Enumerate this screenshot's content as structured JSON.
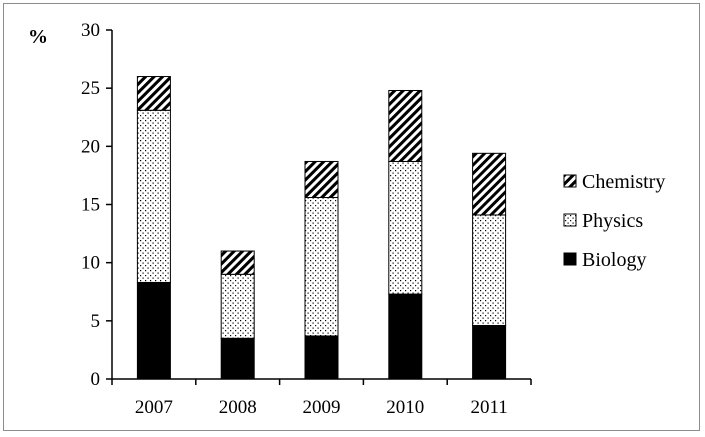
{
  "chart_data": {
    "type": "bar",
    "stacked": true,
    "title": "",
    "xlabel": "",
    "ylabel": "%",
    "ylim": [
      0,
      30
    ],
    "yticks": [
      0,
      5,
      10,
      15,
      20,
      25,
      30
    ],
    "grid": false,
    "legend_position": "right",
    "categories": [
      "2007",
      "2008",
      "2009",
      "2010",
      "2011"
    ],
    "series": [
      {
        "name": "Biology",
        "pattern": "solid",
        "color": "#000000",
        "values": [
          8.3,
          3.5,
          3.7,
          7.3,
          4.6
        ]
      },
      {
        "name": "Physics",
        "pattern": "dotted",
        "color": "#ffffff",
        "values": [
          14.8,
          5.5,
          11.9,
          11.4,
          9.5
        ]
      },
      {
        "name": "Chemistry",
        "pattern": "hatched",
        "color": "#000000",
        "values": [
          2.9,
          2.0,
          3.1,
          6.1,
          5.3
        ]
      }
    ],
    "legend_order": [
      "Chemistry",
      "Physics",
      "Biology"
    ]
  }
}
